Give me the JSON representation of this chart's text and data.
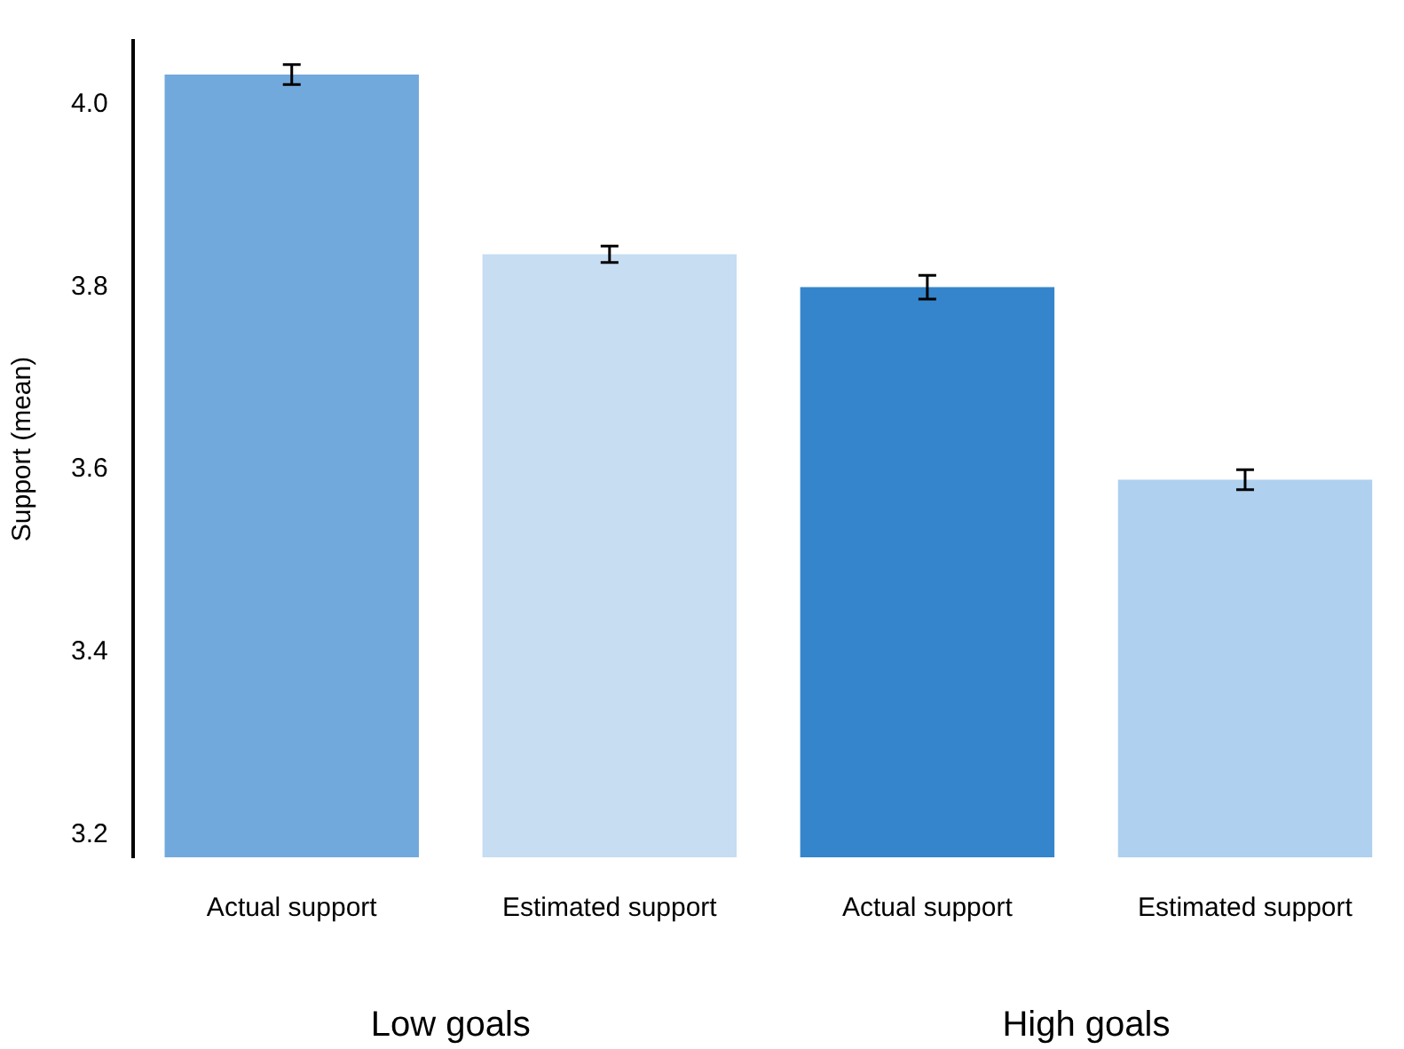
{
  "chart_data": {
    "type": "bar",
    "ylabel": "Support (mean)",
    "categories": [
      "Actual support",
      "Estimated support",
      "Actual support",
      "Estimated support"
    ],
    "values": [
      4.033,
      3.836,
      3.8,
      3.589
    ],
    "colors": [
      "#72a9dc",
      "#c6ddf2",
      "#3585cc",
      "#afd0ee"
    ],
    "errors": [
      0.011,
      0.009,
      0.013,
      0.011
    ],
    "ylim": [
      3.175,
      4.07
    ],
    "yticks": [
      3.2,
      3.4,
      3.6,
      3.8,
      {
        "value": 4,
        "label": "4.0"
      }
    ],
    "grid": false,
    "legend": false,
    "annotations": [
      "Low goals",
      "High goals"
    ]
  }
}
